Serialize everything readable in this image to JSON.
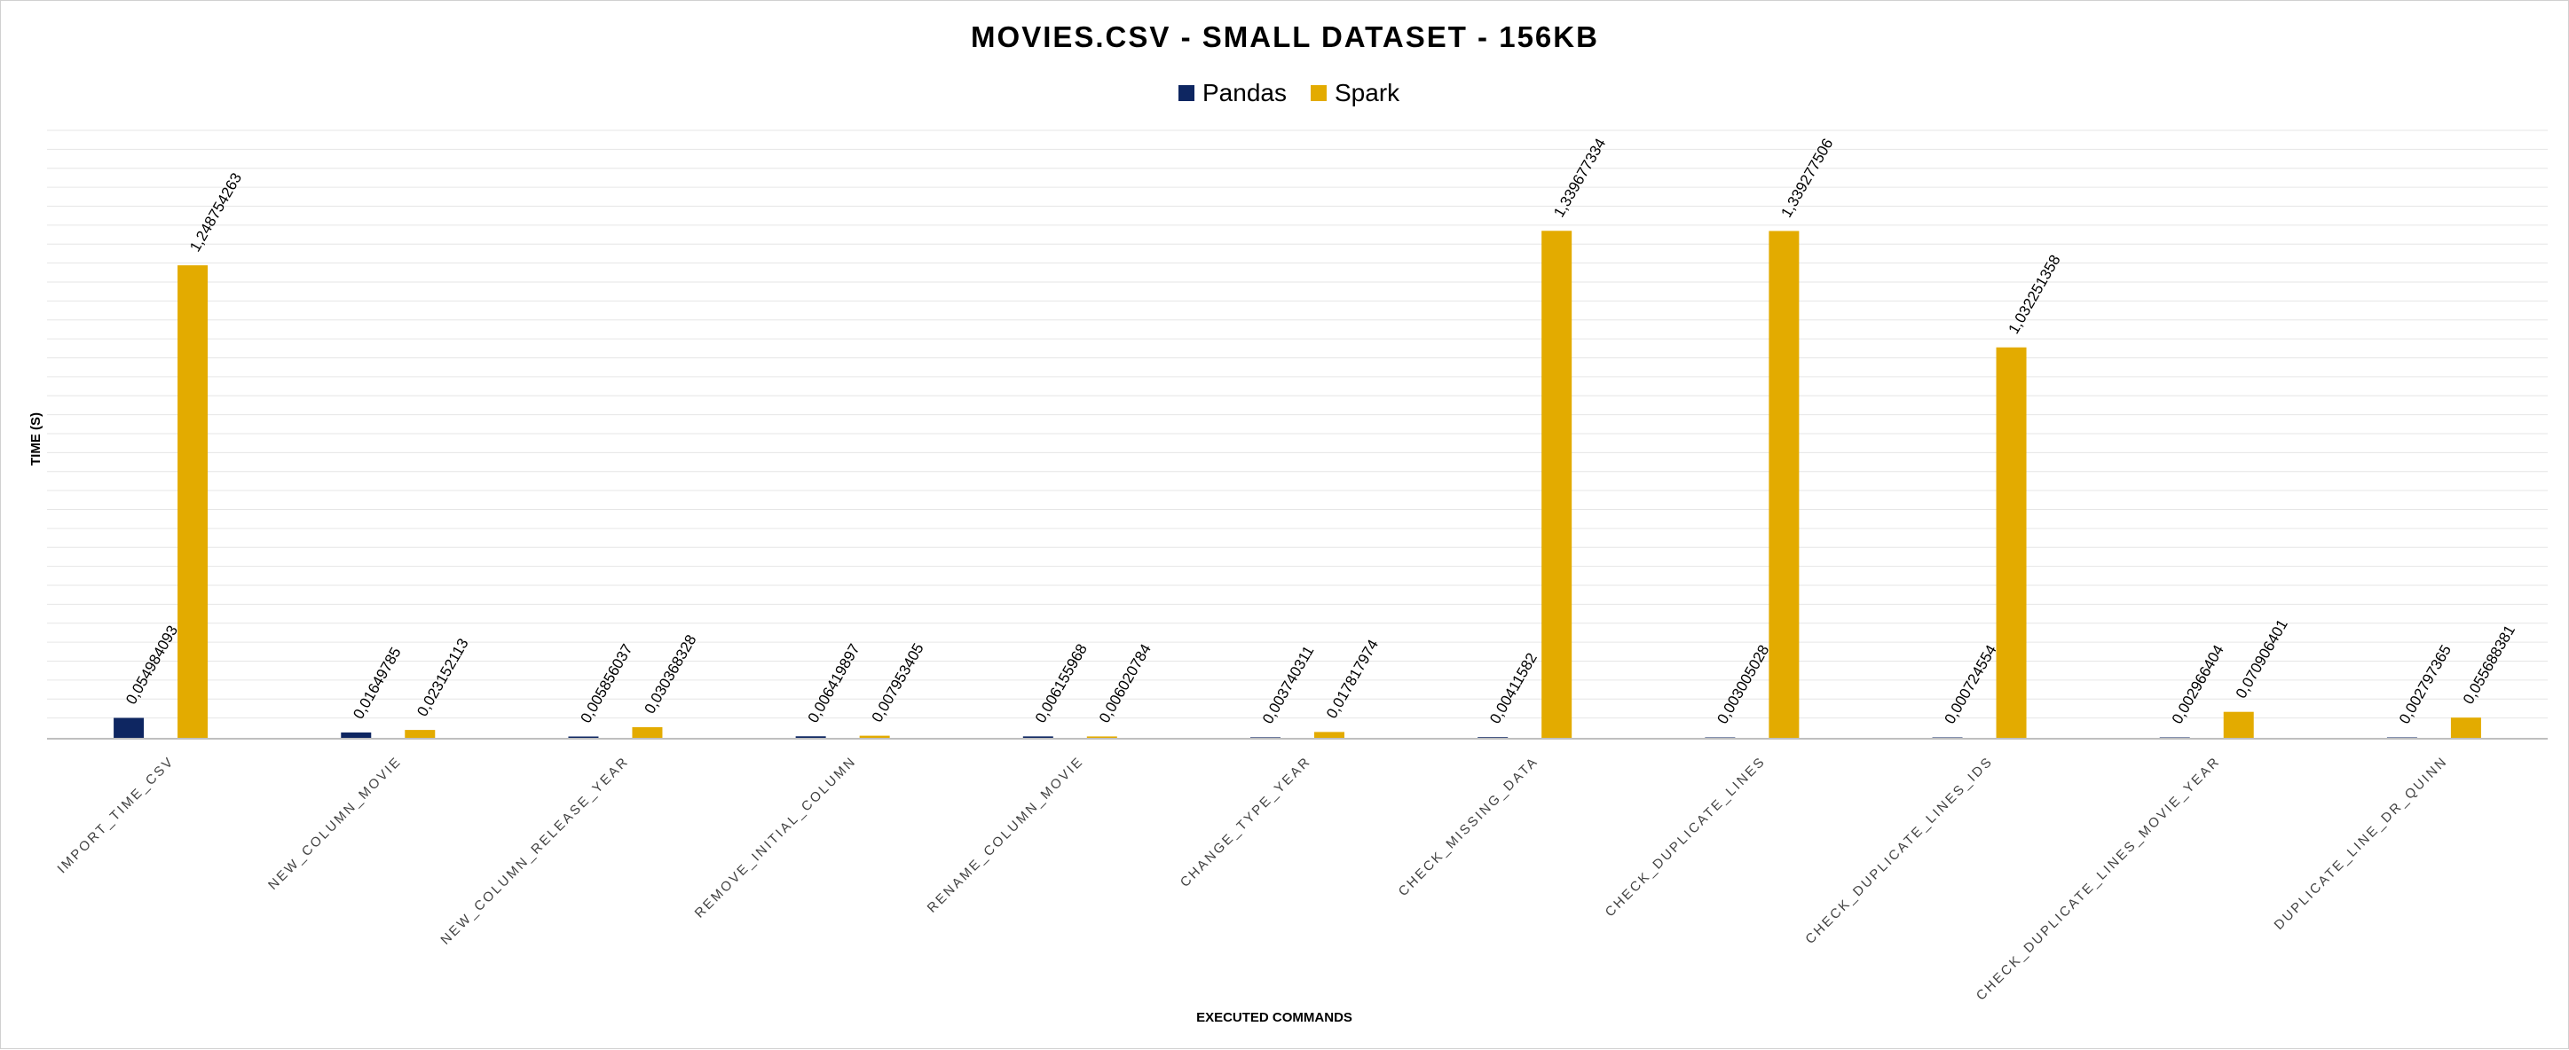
{
  "chart_data": {
    "type": "bar",
    "title": "MOVIES.CSV - SMALL DATASET - 156KB",
    "xlabel": "EXECUTED COMMANDS",
    "ylabel": "TIME (S)",
    "ylim": [
      0,
      1.6
    ],
    "grid": true,
    "legend_position": "top-center",
    "categories": [
      "IMPORT_TIME_CSV",
      "NEW_COLUMN_MOVIE",
      "NEW_COLUMN_RELEASE_YEAR",
      "REMOVE_INITIAL_COLUMN",
      "RENAME_COLUMN_MOVIE",
      "CHANGE_TYPE_YEAR",
      "CHECK_MISSING_DATA",
      "CHECK_DUPLICATE_LINES",
      "CHECK_DUPLICATE_LINES_IDS",
      "CHECK_DUPLICATE_LINES_MOVIE_YEAR",
      "DUPLICATE_LINE_DR_QUINN"
    ],
    "series": [
      {
        "name": "Pandas",
        "color": "#0e2661",
        "values": [
          0.054984093,
          0.01649785,
          0.005856037,
          0.006419897,
          0.006155968,
          0.003740311,
          0.00411582,
          0.003005028,
          0.000724554,
          0.002966404,
          0.002797365
        ],
        "labels": [
          "0,054984093",
          "0,01649785",
          "0,005856037",
          "0,006419897",
          "0,006155968",
          "0,003740311",
          "0,00411582",
          "0,003005028",
          "0,000724554",
          "0,002966404",
          "0,002797365"
        ]
      },
      {
        "name": "Spark",
        "color": "#e3ab00",
        "values": [
          1.248754263,
          0.023152113,
          0.030368328,
          0.007953405,
          0.006020784,
          0.017817974,
          1.339677334,
          1.339277506,
          1.032251358,
          0.070906401,
          0.055688381
        ],
        "labels": [
          "1,248754263",
          "0,023152113",
          "0,030368328",
          "0,007953405",
          "0,006020784",
          "0,017817974",
          "1,339677334",
          "1,339277506",
          "1,032251358",
          "0,070906401",
          "0,055688381"
        ]
      }
    ]
  }
}
